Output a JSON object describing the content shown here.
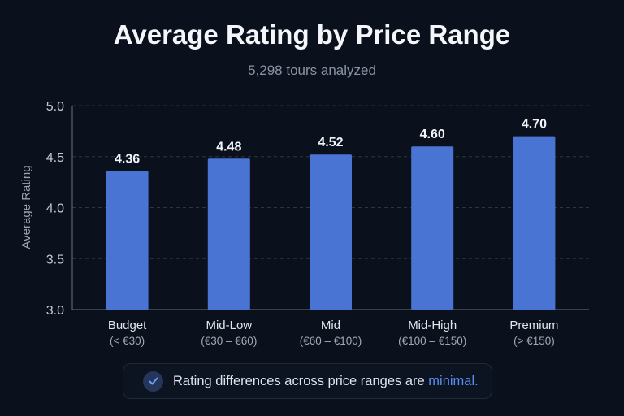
{
  "chart_data": {
    "type": "bar",
    "title": "Average Rating by Price Range",
    "subtitle": "5,298 tours analyzed",
    "ylabel": "Average Rating",
    "xlabel": "",
    "ylim": [
      3.0,
      5.0
    ],
    "yticks": [
      "3.0",
      "3.5",
      "4.0",
      "4.5",
      "5.0"
    ],
    "grid": true,
    "categories": [
      "Budget",
      "Mid-Low",
      "Mid",
      "Mid-High",
      "Premium"
    ],
    "category_ranges": [
      "(< €30)",
      "(€30 – €60)",
      "(€60 – €100)",
      "(€100 – €150)",
      "(> €150)"
    ],
    "values": [
      4.36,
      4.48,
      4.52,
      4.6,
      4.7
    ],
    "data_labels": [
      "4.36",
      "4.48",
      "4.52",
      "4.60",
      "4.70"
    ],
    "bar_color": "#4a74d4"
  },
  "note": {
    "icon": "check-circle-icon",
    "text": "Rating differences across price ranges are ",
    "highlight": "minimal.",
    "highlight_color": "#5b8cf0"
  }
}
